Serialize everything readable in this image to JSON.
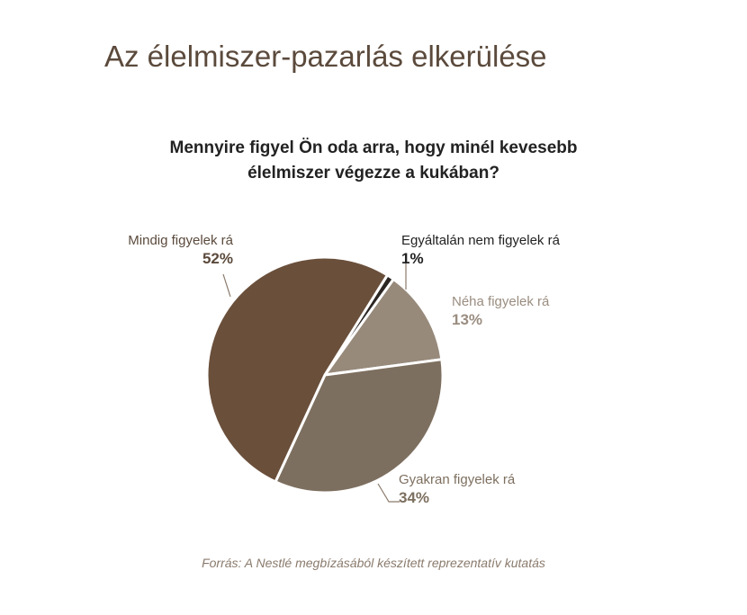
{
  "header": {
    "title": "Az élelmiszer-pazarlás elkerülése"
  },
  "chart_data": {
    "type": "pie",
    "title_lines": [
      "Mennyire figyel Ön oda arra, hogy minél kevesebb",
      "élelmiszer végezze a kukában?"
    ],
    "slices": [
      {
        "label": "Egyáltalán nem figyelek rá",
        "value": 1,
        "display": "1%",
        "color": "#2b2623"
      },
      {
        "label": "Néha figyelek rá",
        "value": 13,
        "display": "13%",
        "color": "#978a7b"
      },
      {
        "label": "Gyakran figyelek rá",
        "value": 34,
        "display": "34%",
        "color": "#7d6f5f"
      },
      {
        "label": "Mindig figyelek rá",
        "value": 52,
        "display": "52%",
        "color": "#6a4f3b"
      }
    ],
    "label_color": "#9a8d80",
    "accent_label_color": "#5b4a3c"
  },
  "footer": {
    "source": "Forrás: A Nestlé megbízásából készített reprezentatív kutatás"
  }
}
